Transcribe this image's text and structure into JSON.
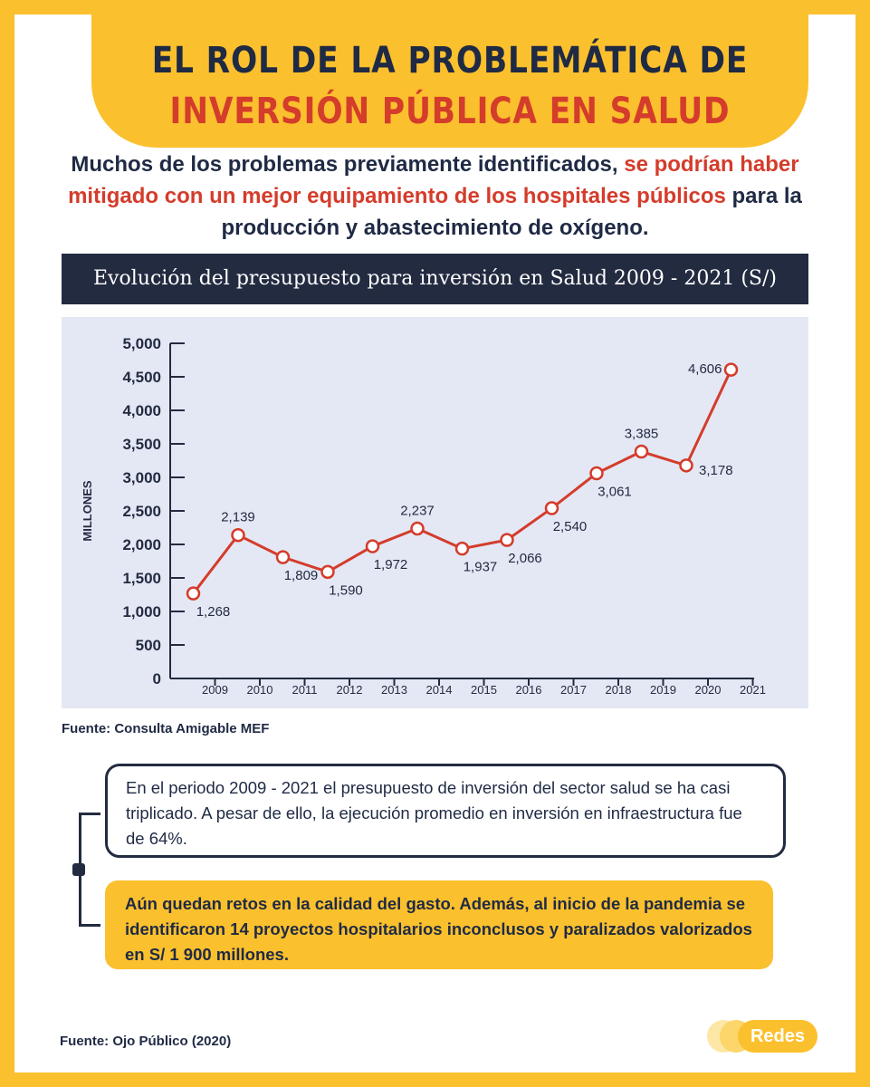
{
  "header": {
    "line1": "EL ROL DE LA PROBLEMÁTICA DE",
    "line2": "INVERSIÓN PÚBLICA EN SALUD"
  },
  "intro": {
    "part1": "Muchos de los problemas previamente identificados, ",
    "highlight": "se podrían haber mitigado con un mejor equipamiento de los hospitales públicos",
    "part2": " para la producción y abastecimiento de oxígeno."
  },
  "chart_title": "Evolución del presupuesto para inversión en Salud 2009 - 2021 (S/)",
  "chart_data": {
    "type": "line",
    "title": "Evolución del presupuesto para inversión en Salud 2009 - 2021 (S/)",
    "xlabel": "",
    "ylabel": "MILLONES",
    "ylim": [
      0,
      5000
    ],
    "yticks": [
      "0",
      "500",
      "1,000",
      "1,500",
      "2,000",
      "2,500",
      "3,000",
      "3,500",
      "4,000",
      "4,500",
      "5,000"
    ],
    "xticks": [
      "2009",
      "2010",
      "2011",
      "2012",
      "2013",
      "2014",
      "2015",
      "2016",
      "2017",
      "2018",
      "2019",
      "2020",
      "2021"
    ],
    "categories": [
      "2009",
      "2010",
      "2011",
      "2012",
      "2013",
      "2014",
      "2015",
      "2016",
      "2017",
      "2018",
      "2019",
      "2020",
      "2021"
    ],
    "series": [
      {
        "values": [
          1268,
          2139,
          1809,
          1590,
          1972,
          2237,
          1937,
          2066,
          2540,
          3061,
          3385,
          3178,
          4606
        ],
        "labels": [
          "1,268",
          "2,139",
          "1,809",
          "1,590",
          "1,972",
          "2,237",
          "1,937",
          "2,066",
          "2,540",
          "3,061",
          "3,385",
          "3,178",
          "4,606"
        ],
        "color": "#d43c2b"
      }
    ],
    "grid": false,
    "legend": "none"
  },
  "fuente_chart": "Fuente: Consulta Amigable MEF",
  "note1": "En el periodo 2009 - 2021 el presupuesto de inversión del sector salud se ha casi triplicado. A pesar de ello, la ejecución promedio en inversión en infraestructura fue de 64%.",
  "note2": "Aún quedan retos en la calidad del gasto. Además, al inicio de la pandemia se identificaron 14 proyectos hospitalarios inconclusos y paralizados valorizados en S/ 1 900 millones.",
  "fuente_bottom": "Fuente:  Ojo Público (2020)",
  "brand": "Redes",
  "colors": {
    "frame": "#fbc02d",
    "navy": "#232b41",
    "accent_red": "#d43c2b",
    "chart_bg": "#e4e8f5"
  }
}
